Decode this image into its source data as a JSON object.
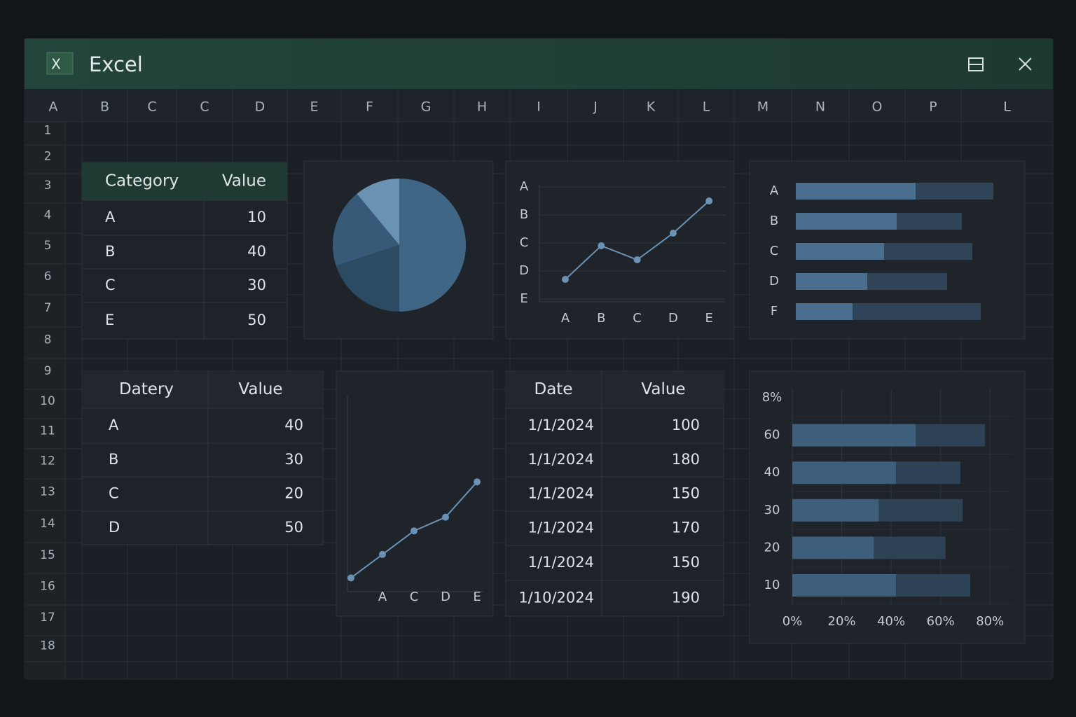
{
  "window": {
    "icon": "X",
    "title": "Excel"
  },
  "sheet": {
    "columns": [
      "A",
      "B",
      "C",
      "C",
      "D",
      "E",
      "F",
      "G",
      "H",
      "I",
      "J",
      "K",
      "L",
      "M",
      "N",
      "O",
      "P",
      "L"
    ],
    "rows": [
      1,
      2,
      3,
      4,
      5,
      6,
      7,
      8,
      9,
      10,
      11,
      12,
      13,
      14,
      15,
      16,
      17,
      18
    ]
  },
  "tables": [
    {
      "header": [
        "Category",
        "Value"
      ],
      "rows": [
        [
          "A",
          10
        ],
        [
          "B",
          40
        ],
        [
          "C",
          30
        ],
        [
          "E",
          50
        ]
      ]
    },
    {
      "header": [
        "Datery",
        "Value"
      ],
      "rows": [
        [
          "A",
          40
        ],
        [
          "B",
          30
        ],
        [
          "C",
          20
        ],
        [
          "D",
          50
        ]
      ]
    },
    {
      "header": [
        "Date",
        "Value"
      ],
      "rows": [
        [
          "1/1/2024",
          100
        ],
        [
          "1/1/2024",
          180
        ],
        [
          "1/1/2024",
          150
        ],
        [
          "1/1/2024",
          170
        ],
        [
          "1/1/2024",
          150
        ],
        [
          "1/10/2024",
          190
        ]
      ]
    }
  ],
  "chart_data": [
    {
      "type": "pie",
      "values": [
        50,
        20,
        19,
        11
      ],
      "colors": [
        "#3f6685",
        "#2d4a63",
        "#375a78",
        "#6a93b3"
      ]
    },
    {
      "type": "line",
      "categories": [
        "A",
        "B",
        "C",
        "D",
        "E"
      ],
      "values": [
        0.7,
        1.9,
        1.4,
        2.35,
        3.5
      ],
      "color": "#6a92b5",
      "ylim": [
        -0.1,
        4.1
      ],
      "yticks": [
        {
          "value": 4,
          "label": "A"
        },
        {
          "value": 3,
          "label": "B"
        },
        {
          "value": 2,
          "label": "C"
        },
        {
          "value": 1,
          "label": "D"
        },
        {
          "value": 0,
          "label": "E"
        }
      ],
      "grid": true
    },
    {
      "type": "bar",
      "orientation": "horizontal",
      "stacked": true,
      "categories": [
        "A",
        "B",
        "C",
        "D",
        "F"
      ],
      "series": [
        {
          "color": "#4a6f8e",
          "values": [
            57,
            48,
            42,
            34,
            27
          ]
        },
        {
          "color": "#2f4456",
          "values": [
            37,
            31,
            42,
            38,
            61
          ]
        }
      ],
      "xlim": [
        0,
        100
      ]
    },
    {
      "type": "line",
      "categories": [
        null,
        "A",
        "C",
        "D",
        "E"
      ],
      "values": [
        7,
        19,
        31,
        38,
        56
      ],
      "color": "#6a92b5",
      "ylim": [
        0,
        100
      ]
    },
    {
      "type": "bar",
      "orientation": "horizontal",
      "stacked": true,
      "categories": [
        "8%",
        "60",
        "40",
        "30",
        "20",
        "10"
      ],
      "series": [
        {
          "color": "#3e5f7c",
          "values": [
            null,
            50,
            42,
            35,
            33,
            42
          ]
        },
        {
          "color": "#2d4255",
          "values": [
            null,
            28,
            26,
            34,
            29,
            30
          ]
        }
      ],
      "xlim": [
        0,
        89
      ],
      "xticks": [
        {
          "value": 0,
          "label": "0%"
        },
        {
          "value": 20,
          "label": "20%"
        },
        {
          "value": 40,
          "label": "40%"
        },
        {
          "value": 60,
          "label": "60%"
        },
        {
          "value": 80,
          "label": "80%"
        }
      ],
      "grid": true
    }
  ]
}
